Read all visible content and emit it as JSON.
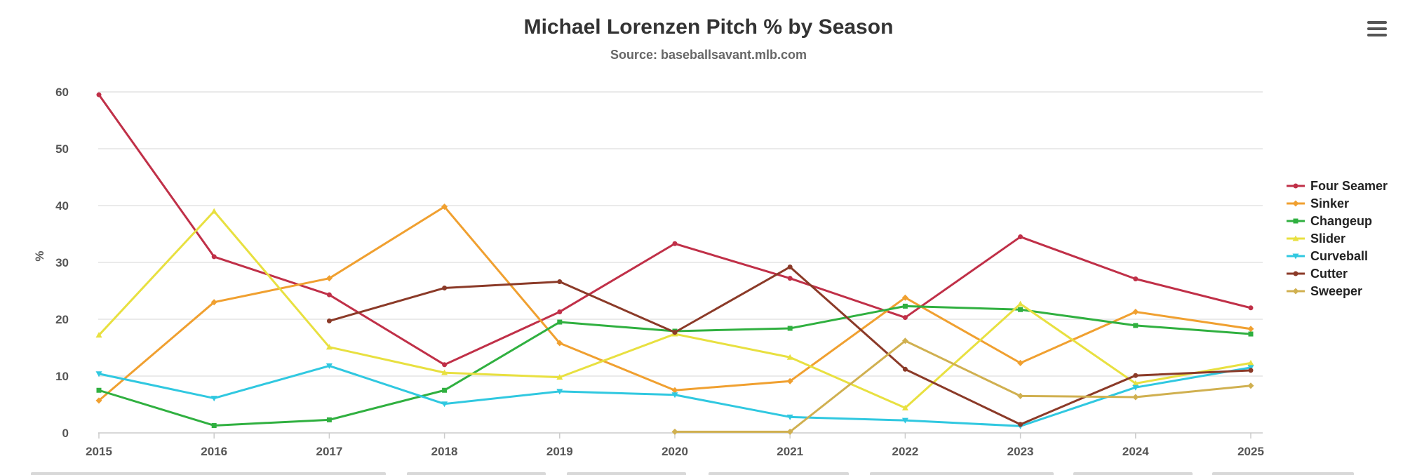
{
  "chart_data": {
    "type": "line",
    "title": "Michael Lorenzen Pitch % by Season",
    "subtitle": "Source: baseballsavant.mlb.com",
    "xlabel": "",
    "ylabel": "%",
    "x": [
      2015,
      2016,
      2017,
      2018,
      2019,
      2020,
      2021,
      2022,
      2023,
      2024,
      2025
    ],
    "ylim": [
      0,
      60
    ],
    "yticks": [
      0,
      10,
      20,
      30,
      40,
      50,
      60
    ],
    "grid": true,
    "legend_position": "right",
    "series": [
      {
        "name": "Four Seamer",
        "color": "#c03048",
        "marker": "circle",
        "values": [
          59.5,
          31.0,
          24.3,
          12.0,
          21.3,
          33.3,
          27.2,
          20.3,
          34.5,
          27.1,
          22.0
        ]
      },
      {
        "name": "Sinker",
        "color": "#f0a030",
        "marker": "diamond",
        "values": [
          5.7,
          23.0,
          27.2,
          39.8,
          15.8,
          7.5,
          9.1,
          23.8,
          12.3,
          21.3,
          18.3
        ]
      },
      {
        "name": "Changeup",
        "color": "#30b040",
        "marker": "square",
        "values": [
          7.5,
          1.3,
          2.3,
          7.5,
          19.5,
          17.9,
          18.4,
          22.3,
          21.7,
          18.9,
          17.4
        ]
      },
      {
        "name": "Slider",
        "color": "#e8e040",
        "marker": "triangle",
        "values": [
          17.2,
          39.0,
          15.1,
          10.6,
          9.8,
          17.4,
          13.3,
          4.4,
          22.7,
          8.7,
          12.3
        ]
      },
      {
        "name": "Curveball",
        "color": "#30c8e0",
        "marker": "triangle-down",
        "values": [
          10.4,
          6.1,
          11.8,
          5.1,
          7.3,
          6.7,
          2.8,
          2.2,
          1.2,
          8.0,
          11.5
        ]
      },
      {
        "name": "Cutter",
        "color": "#8b3a28",
        "marker": "circle",
        "values": [
          null,
          null,
          19.7,
          25.5,
          26.6,
          17.7,
          29.2,
          11.2,
          1.5,
          10.1,
          11.0
        ]
      },
      {
        "name": "Sweeper",
        "color": "#d0b050",
        "marker": "diamond",
        "values": [
          null,
          null,
          null,
          null,
          null,
          0.2,
          0.2,
          16.2,
          6.5,
          6.3,
          8.3
        ]
      }
    ]
  },
  "controls": {
    "menu_icon": "hamburger-menu-icon"
  }
}
